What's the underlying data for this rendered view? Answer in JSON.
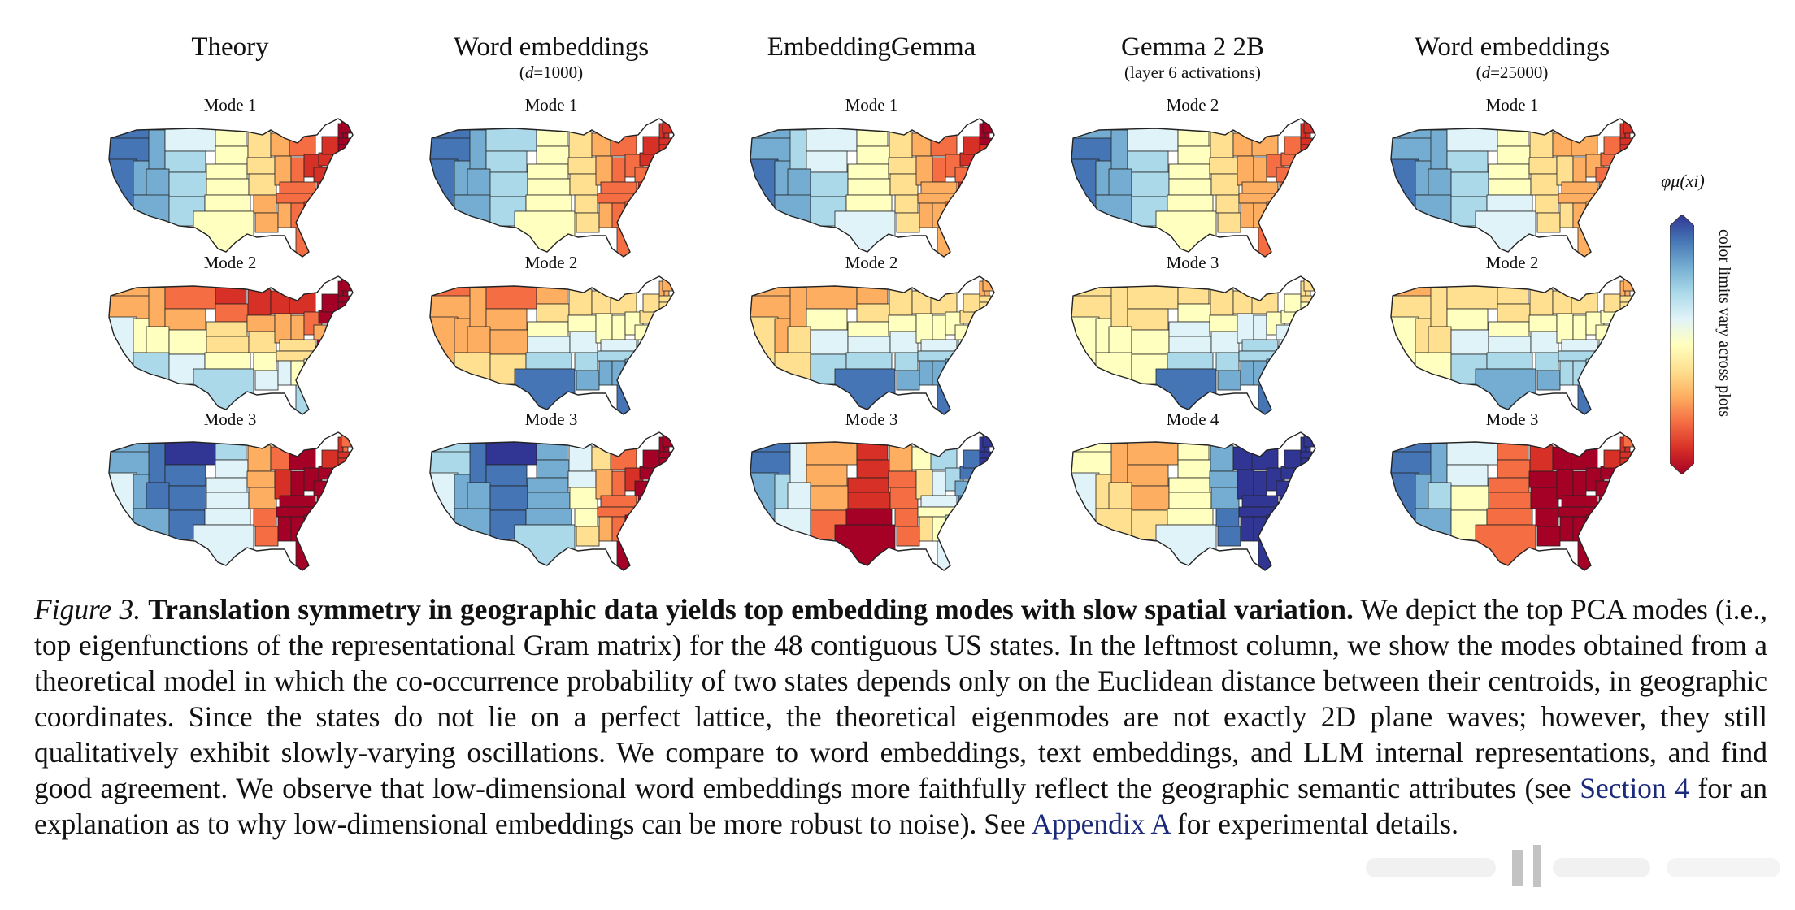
{
  "columns": [
    {
      "title": "Theory",
      "subtitle_var": "",
      "subtitle": "",
      "modes": [
        "Mode 1",
        "Mode 2",
        "Mode 3"
      ]
    },
    {
      "title": "Word embeddings",
      "subtitle_var": "d",
      "subtitle": "=1000",
      "modes": [
        "Mode 1",
        "Mode 2",
        "Mode 3"
      ]
    },
    {
      "title": "EmbeddingGemma",
      "subtitle_var": "",
      "subtitle": "",
      "modes": [
        "Mode 1",
        "Mode 2",
        "Mode 3"
      ]
    },
    {
      "title": "Gemma 2 2B",
      "subtitle_var": "",
      "subtitle": "(layer 6 activations)",
      "modes": [
        "Mode 2",
        "Mode 3",
        "Mode 4"
      ]
    },
    {
      "title": "Word embeddings",
      "subtitle_var": "d",
      "subtitle": "=25000",
      "modes": [
        "Mode 1",
        "Mode 2",
        "Mode 3"
      ]
    }
  ],
  "colorbar": {
    "symbol": "φμ(xi)",
    "caption": "color limits vary across plots",
    "colors": [
      "#313695",
      "#4575b4",
      "#74add1",
      "#abd9e9",
      "#e0f3f8",
      "#ffffbf",
      "#fee090",
      "#fdae61",
      "#f46d43",
      "#d73027",
      "#a50026"
    ]
  },
  "caption": {
    "label": "Figure 3.",
    "bold": "Translation symmetry in geographic data yields top embedding modes with slow spatial variation.",
    "text1": " We depict the top PCA modes (i.e., top eigenfunctions of the representational Gram matrix) for the 48 contiguous US states. In the leftmost column, we show the modes obtained from a theoretical model in which the co-occurrence probability of two states depends only on the Euclidean distance between their centroids, in geographic coordinates. Since the states do not lie on a perfect lattice, the theoretical eigenmodes are not exactly 2D plane waves; however, they still qualitatively exhibit slowly-varying oscillations. We compare to word embeddings, text embeddings, and LLM internal representations, and find good agreement. We observe that low-dimensional word embeddings more faithfully reflect the geographic semantic attributes (see ",
    "link1": "Section 4",
    "text2": " for an explanation as to why low-dimensional embeddings can be more robust to noise). See ",
    "link2": "Appendix A",
    "text3": " for experimental details."
  }
}
